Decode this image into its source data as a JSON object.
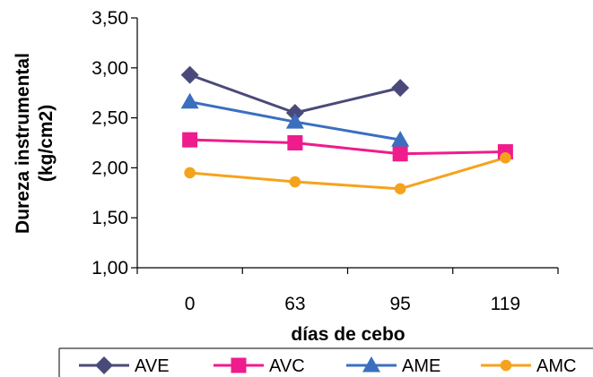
{
  "chart_data": {
    "type": "line",
    "categories": [
      "0",
      "63",
      "95",
      "119"
    ],
    "xlabel": "días de cebo",
    "ylabel_line1": "Dureza instrumental",
    "ylabel_line2": "(kg/cm2)",
    "ylim": [
      1.0,
      3.5
    ],
    "yticks": [
      "1,00",
      "1,50",
      "2,00",
      "2,50",
      "3,00",
      "3,50"
    ],
    "grid": false,
    "legend_position": "bottom",
    "series": [
      {
        "name": "AVE",
        "color": "#4a4a7a",
        "marker": "diamond",
        "values": [
          2.93,
          2.55,
          2.8,
          null
        ]
      },
      {
        "name": "AVC",
        "color": "#ee1c8c",
        "marker": "square",
        "values": [
          2.28,
          2.25,
          2.14,
          2.16
        ]
      },
      {
        "name": "AME",
        "color": "#3a6fc0",
        "marker": "triangle",
        "values": [
          2.66,
          2.46,
          2.28,
          null
        ]
      },
      {
        "name": "AMC",
        "color": "#f5a31d",
        "marker": "circle",
        "values": [
          1.95,
          1.86,
          1.79,
          2.1
        ]
      }
    ]
  }
}
